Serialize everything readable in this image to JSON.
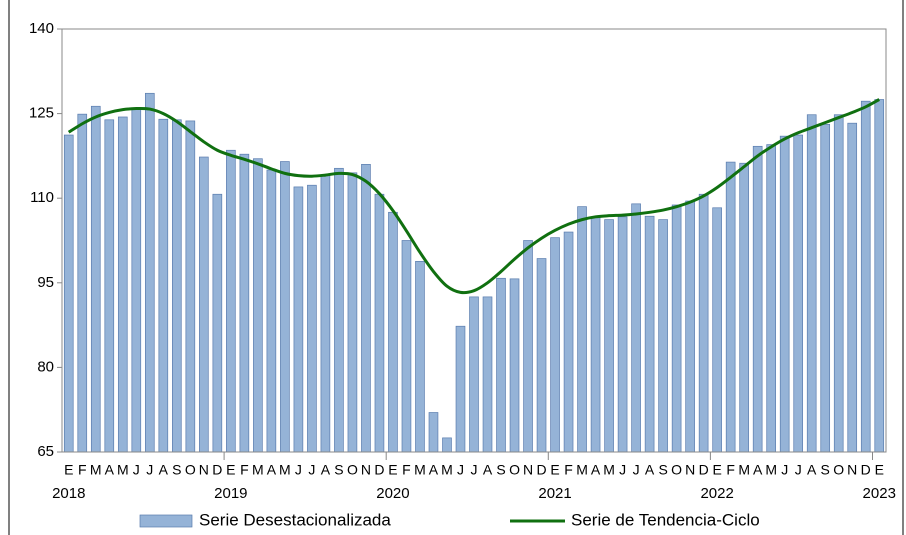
{
  "chart_data": {
    "type": "bar-line",
    "categories": [
      "E",
      "F",
      "M",
      "A",
      "M",
      "J",
      "J",
      "A",
      "S",
      "O",
      "N",
      "D",
      "E",
      "F",
      "M",
      "A",
      "M",
      "J",
      "J",
      "A",
      "S",
      "O",
      "N",
      "D",
      "E",
      "F",
      "M",
      "A",
      "M",
      "J",
      "J",
      "A",
      "S",
      "O",
      "N",
      "D",
      "E",
      "F",
      "M",
      "A",
      "M",
      "J",
      "J",
      "A",
      "S",
      "O",
      "N",
      "D",
      "E",
      "F",
      "M",
      "A",
      "M",
      "J",
      "J",
      "A",
      "S",
      "O",
      "N",
      "D",
      "E"
    ],
    "years": [
      "2018",
      "2019",
      "2020",
      "2021",
      "2022",
      "2023"
    ],
    "series": [
      {
        "name": "Serie Desestacionalizada",
        "type": "bar",
        "color": "#95b3d7",
        "values": [
          121.2,
          124.9,
          126.3,
          123.9,
          124.4,
          125.8,
          128.6,
          124.0,
          123.9,
          123.7,
          117.3,
          110.7,
          118.5,
          117.8,
          117.0,
          115.0,
          116.5,
          112.0,
          112.3,
          114.0,
          115.3,
          114.5,
          116.0,
          110.7,
          107.5,
          102.5,
          98.8,
          72.0,
          67.5,
          87.3,
          92.5,
          92.5,
          95.8,
          95.7,
          102.5,
          99.3,
          103.0,
          104.0,
          108.5,
          106.7,
          106.2,
          106.7,
          109.0,
          106.8,
          106.2,
          108.8,
          109.5,
          110.7,
          108.3,
          116.4,
          116.2,
          119.2,
          119.5,
          121.0,
          121.2,
          124.8,
          123.1,
          124.8,
          123.3,
          127.2,
          127.5
        ]
      },
      {
        "name": "Serie de Tendencia-Ciclo",
        "type": "line",
        "color": "#107010",
        "values": [
          121.7,
          123.2,
          124.4,
          125.2,
          125.7,
          125.9,
          125.8,
          125.0,
          123.6,
          121.8,
          120.0,
          118.5,
          117.6,
          116.9,
          116.1,
          115.2,
          114.4,
          114.0,
          113.9,
          114.1,
          114.4,
          114.2,
          113.0,
          110.8,
          107.8,
          104.2,
          100.4,
          97.0,
          94.4,
          93.3,
          93.6,
          95.0,
          97.0,
          99.2,
          101.2,
          102.9,
          104.3,
          105.4,
          106.2,
          106.7,
          106.9,
          107.0,
          107.2,
          107.5,
          107.9,
          108.5,
          109.3,
          110.4,
          111.9,
          113.7,
          115.6,
          117.5,
          119.1,
          120.5,
          121.6,
          122.5,
          123.4,
          124.3,
          125.2,
          126.2,
          127.5
        ]
      }
    ],
    "ylim": [
      65,
      140
    ],
    "yticks": [
      65,
      80,
      95,
      110,
      125,
      140
    ],
    "legend": "bottom"
  }
}
